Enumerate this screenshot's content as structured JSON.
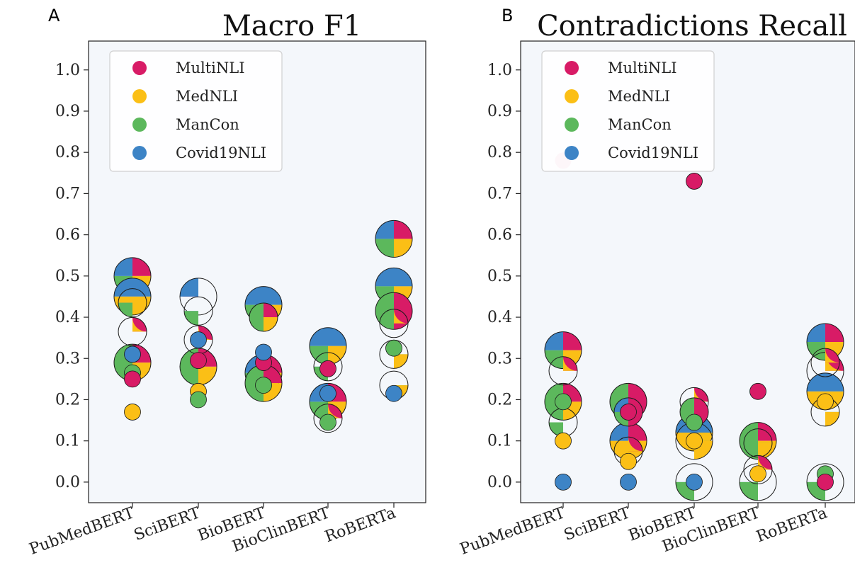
{
  "panels": [
    {
      "letter": "A",
      "title": "Macro F1"
    },
    {
      "letter": "B",
      "title": "Contradictions Recall"
    }
  ],
  "colors": {
    "MultiNLI": "#d81b66",
    "MedNLI": "#fbbf16",
    "ManCon": "#5cb85c",
    "Covid19NLI": "#3d84c6"
  },
  "chart_data": [
    {
      "type": "scatter",
      "title": "Macro F1",
      "categories": [
        "PubMedBERT",
        "SciBERT",
        "BioBERT",
        "BioClinBERT",
        "RoBERTa"
      ],
      "ylim": [
        -0.05,
        1.07
      ],
      "yticks": [
        "0.0",
        "0.1",
        "0.2",
        "0.3",
        "0.4",
        "0.5",
        "0.6",
        "0.7",
        "0.8",
        "0.9",
        "1.0"
      ],
      "legend": [
        "MultiNLI",
        "MedNLI",
        "ManCon",
        "Covid19NLI"
      ],
      "legend_position": "top-left",
      "grid": false,
      "points": [
        {
          "cat": "PubMedBERT",
          "y": 0.5,
          "size": "large",
          "slices": [
            "MultiNLI",
            "MedNLI",
            "ManCon",
            "Covid19NLI"
          ]
        },
        {
          "cat": "PubMedBERT",
          "y": 0.45,
          "size": "large",
          "slices": [
            "MedNLI",
            "Covid19NLI"
          ]
        },
        {
          "cat": "PubMedBERT",
          "y": 0.435,
          "size": "medium",
          "slices": [
            "ManCon",
            "Covid19NLI"
          ]
        },
        {
          "cat": "PubMedBERT",
          "y": 0.365,
          "size": "medium",
          "slices": [
            "MultiNLI",
            "MedNLI"
          ]
        },
        {
          "cat": "PubMedBERT",
          "y": 0.29,
          "size": "large",
          "slices": [
            "MultiNLI",
            "MedNLI",
            "ManCon"
          ]
        },
        {
          "cat": "PubMedBERT",
          "y": 0.31,
          "size": "small",
          "slices": [
            "Covid19NLI"
          ]
        },
        {
          "cat": "PubMedBERT",
          "y": 0.265,
          "size": "small",
          "slices": [
            "ManCon"
          ]
        },
        {
          "cat": "PubMedBERT",
          "y": 0.25,
          "size": "small",
          "slices": [
            "MultiNLI"
          ]
        },
        {
          "cat": "PubMedBERT",
          "y": 0.17,
          "size": "small",
          "slices": [
            "MedNLI"
          ]
        },
        {
          "cat": "SciBERT",
          "y": 0.45,
          "size": "large",
          "slices": [
            "MultiNLI",
            "Covid19NLI"
          ]
        },
        {
          "cat": "SciBERT",
          "y": 0.415,
          "size": "medium",
          "slices": [
            "ManCon",
            "Covid19NLI"
          ]
        },
        {
          "cat": "SciBERT",
          "y": 0.345,
          "size": "medium",
          "slices": [
            "MultiNLI",
            "MedNLI"
          ]
        },
        {
          "cat": "SciBERT",
          "y": 0.345,
          "size": "small",
          "slices": [
            "Covid19NLI"
          ]
        },
        {
          "cat": "SciBERT",
          "y": 0.28,
          "size": "large",
          "slices": [
            "MultiNLI",
            "MedNLI",
            "ManCon"
          ]
        },
        {
          "cat": "SciBERT",
          "y": 0.295,
          "size": "small",
          "slices": [
            "MultiNLI"
          ]
        },
        {
          "cat": "SciBERT",
          "y": 0.22,
          "size": "small",
          "slices": [
            "MedNLI"
          ]
        },
        {
          "cat": "SciBERT",
          "y": 0.2,
          "size": "small",
          "slices": [
            "ManCon"
          ]
        },
        {
          "cat": "BioBERT",
          "y": 0.43,
          "size": "large",
          "slices": [
            "MedNLI",
            "ManCon",
            "Covid19NLI"
          ]
        },
        {
          "cat": "BioBERT",
          "y": 0.4,
          "size": "medium",
          "slices": [
            "MultiNLI",
            "MedNLI",
            "ManCon"
          ]
        },
        {
          "cat": "BioBERT",
          "y": 0.29,
          "size": "small",
          "slices": [
            "MultiNLI"
          ]
        },
        {
          "cat": "BioBERT",
          "y": 0.315,
          "size": "small",
          "slices": [
            "Covid19NLI"
          ]
        },
        {
          "cat": "BioBERT",
          "y": 0.265,
          "size": "large",
          "slices": [
            "MultiNLI",
            "MedNLI",
            "ManCon",
            "Covid19NLI"
          ]
        },
        {
          "cat": "BioBERT",
          "y": 0.24,
          "size": "large",
          "slices": [
            "MultiNLI",
            "MedNLI",
            "ManCon"
          ]
        },
        {
          "cat": "BioBERT",
          "y": 0.235,
          "size": "small",
          "slices": [
            "ManCon"
          ]
        },
        {
          "cat": "BioClinBERT",
          "y": 0.33,
          "size": "large",
          "slices": [
            "MedNLI",
            "ManCon",
            "Covid19NLI"
          ]
        },
        {
          "cat": "BioClinBERT",
          "y": 0.28,
          "size": "medium",
          "slices": [
            "ManCon",
            "Covid19NLI"
          ]
        },
        {
          "cat": "BioClinBERT",
          "y": 0.275,
          "size": "small",
          "slices": [
            "MultiNLI"
          ]
        },
        {
          "cat": "BioClinBERT",
          "y": 0.195,
          "size": "large",
          "slices": [
            "MultiNLI",
            "MedNLI",
            "ManCon",
            "Covid19NLI"
          ]
        },
        {
          "cat": "BioClinBERT",
          "y": 0.215,
          "size": "small",
          "slices": [
            "Covid19NLI"
          ]
        },
        {
          "cat": "BioClinBERT",
          "y": 0.155,
          "size": "medium",
          "slices": [
            "MultiNLI",
            "MedNLI"
          ]
        },
        {
          "cat": "BioClinBERT",
          "y": 0.145,
          "size": "small",
          "slices": [
            "ManCon"
          ]
        },
        {
          "cat": "RoBERTa",
          "y": 0.59,
          "size": "large",
          "slices": [
            "MultiNLI",
            "MedNLI",
            "ManCon",
            "Covid19NLI"
          ]
        },
        {
          "cat": "RoBERTa",
          "y": 0.475,
          "size": "large",
          "slices": [
            "MedNLI",
            "ManCon",
            "Covid19NLI"
          ]
        },
        {
          "cat": "RoBERTa",
          "y": 0.415,
          "size": "large",
          "slices": [
            "MultiNLI",
            "ManCon"
          ]
        },
        {
          "cat": "RoBERTa",
          "y": 0.385,
          "size": "medium",
          "slices": [
            "MultiNLI",
            "MedNLI"
          ]
        },
        {
          "cat": "RoBERTa",
          "y": 0.31,
          "size": "medium",
          "slices": [
            "MedNLI",
            "ManCon"
          ]
        },
        {
          "cat": "RoBERTa",
          "y": 0.325,
          "size": "small",
          "slices": [
            "ManCon"
          ]
        },
        {
          "cat": "RoBERTa",
          "y": 0.235,
          "size": "medium",
          "slices": [
            "MedNLI",
            "ManCon"
          ]
        },
        {
          "cat": "RoBERTa",
          "y": 0.215,
          "size": "small",
          "slices": [
            "Covid19NLI"
          ]
        }
      ]
    },
    {
      "type": "scatter",
      "title": "Contradictions Recall",
      "categories": [
        "PubMedBERT",
        "SciBERT",
        "BioBERT",
        "BioClinBERT",
        "RoBERTa"
      ],
      "ylim": [
        -0.05,
        1.07
      ],
      "yticks": [
        "0.0",
        "0.1",
        "0.2",
        "0.3",
        "0.4",
        "0.5",
        "0.6",
        "0.7",
        "0.8",
        "0.9",
        "1.0"
      ],
      "legend": [
        "MultiNLI",
        "MedNLI",
        "ManCon",
        "Covid19NLI"
      ],
      "legend_position": "top-left",
      "grid": false,
      "points": [
        {
          "cat": "PubMedBERT",
          "y": 0.78,
          "size": "small",
          "slices": [
            "MultiNLI"
          ],
          "faded": true
        },
        {
          "cat": "PubMedBERT",
          "y": 0.32,
          "size": "large",
          "slices": [
            "MultiNLI",
            "MedNLI",
            "ManCon",
            "Covid19NLI"
          ]
        },
        {
          "cat": "PubMedBERT",
          "y": 0.27,
          "size": "medium",
          "slices": [
            "MultiNLI",
            "MedNLI"
          ]
        },
        {
          "cat": "PubMedBERT",
          "y": 0.195,
          "size": "large",
          "slices": [
            "MultiNLI",
            "MedNLI",
            "ManCon"
          ]
        },
        {
          "cat": "PubMedBERT",
          "y": 0.195,
          "size": "small",
          "slices": [
            "ManCon"
          ]
        },
        {
          "cat": "PubMedBERT",
          "y": 0.145,
          "size": "medium",
          "slices": [
            "ManCon",
            "Covid19NLI"
          ]
        },
        {
          "cat": "PubMedBERT",
          "y": 0.1,
          "size": "small",
          "slices": [
            "MedNLI"
          ]
        },
        {
          "cat": "PubMedBERT",
          "y": 0.0,
          "size": "small",
          "slices": [
            "Covid19NLI"
          ]
        },
        {
          "cat": "SciBERT",
          "y": 0.195,
          "size": "large",
          "slices": [
            "MultiNLI",
            "ManCon"
          ]
        },
        {
          "cat": "SciBERT",
          "y": 0.17,
          "size": "medium",
          "slices": [
            "MultiNLI",
            "ManCon",
            "Covid19NLI"
          ]
        },
        {
          "cat": "SciBERT",
          "y": 0.17,
          "size": "small",
          "slices": [
            "MultiNLI"
          ]
        },
        {
          "cat": "SciBERT",
          "y": 0.1,
          "size": "large",
          "slices": [
            "MultiNLI",
            "MedNLI",
            "Covid19NLI"
          ]
        },
        {
          "cat": "SciBERT",
          "y": 0.075,
          "size": "medium",
          "slices": [
            "MultiNLI",
            "MedNLI"
          ]
        },
        {
          "cat": "SciBERT",
          "y": 0.05,
          "size": "small",
          "slices": [
            "MedNLI"
          ]
        },
        {
          "cat": "SciBERT",
          "y": 0.0,
          "size": "small",
          "slices": [
            "Covid19NLI"
          ]
        },
        {
          "cat": "BioBERT",
          "y": 0.73,
          "size": "small",
          "slices": [
            "MultiNLI"
          ]
        },
        {
          "cat": "BioBERT",
          "y": 0.195,
          "size": "medium",
          "slices": [
            "MultiNLI",
            "MedNLI"
          ]
        },
        {
          "cat": "BioBERT",
          "y": 0.17,
          "size": "medium",
          "slices": [
            "MultiNLI",
            "ManCon"
          ]
        },
        {
          "cat": "BioBERT",
          "y": 0.145,
          "size": "small",
          "slices": [
            "ManCon"
          ]
        },
        {
          "cat": "BioBERT",
          "y": 0.12,
          "size": "large",
          "slices": [
            "MedNLI",
            "Covid19NLI"
          ]
        },
        {
          "cat": "BioBERT",
          "y": 0.1,
          "size": "large",
          "slices": [
            "MedNLI",
            "ManCon"
          ]
        },
        {
          "cat": "BioBERT",
          "y": 0.1,
          "size": "small",
          "slices": [
            "MedNLI"
          ]
        },
        {
          "cat": "BioBERT",
          "y": 0.0,
          "size": "large",
          "slices": [
            "ManCon",
            "Covid19NLI"
          ]
        },
        {
          "cat": "BioBERT",
          "y": 0.0,
          "size": "small",
          "slices": [
            "Covid19NLI"
          ]
        },
        {
          "cat": "BioClinBERT",
          "y": 0.22,
          "size": "small",
          "slices": [
            "MultiNLI"
          ]
        },
        {
          "cat": "BioClinBERT",
          "y": 0.1,
          "size": "large",
          "slices": [
            "MultiNLI",
            "MedNLI",
            "ManCon"
          ]
        },
        {
          "cat": "BioClinBERT",
          "y": 0.095,
          "size": "medium",
          "slices": [
            "MedNLI",
            "ManCon"
          ]
        },
        {
          "cat": "BioClinBERT",
          "y": 0.03,
          "size": "medium",
          "slices": [
            "MultiNLI",
            "MedNLI"
          ]
        },
        {
          "cat": "BioClinBERT",
          "y": 0.02,
          "size": "small",
          "slices": [
            "MedNLI"
          ]
        },
        {
          "cat": "BioClinBERT",
          "y": 0.0,
          "size": "large",
          "slices": [
            "ManCon",
            "Covid19NLI"
          ]
        },
        {
          "cat": "RoBERTa",
          "y": 0.34,
          "size": "large",
          "slices": [
            "MultiNLI",
            "MedNLI",
            "ManCon",
            "Covid19NLI"
          ]
        },
        {
          "cat": "RoBERTa",
          "y": 0.29,
          "size": "medium",
          "slices": [
            "MultiNLI",
            "MedNLI"
          ]
        },
        {
          "cat": "RoBERTa",
          "y": 0.27,
          "size": "large",
          "slices": [
            "MultiNLI",
            "MedNLI"
          ]
        },
        {
          "cat": "RoBERTa",
          "y": 0.22,
          "size": "large",
          "slices": [
            "MedNLI",
            "Covid19NLI"
          ]
        },
        {
          "cat": "RoBERTa",
          "y": 0.195,
          "size": "small",
          "slices": [
            "MedNLI"
          ]
        },
        {
          "cat": "RoBERTa",
          "y": 0.17,
          "size": "medium",
          "slices": [
            "MedNLI",
            "ManCon"
          ]
        },
        {
          "cat": "RoBERTa",
          "y": 0.02,
          "size": "small",
          "slices": [
            "ManCon"
          ]
        },
        {
          "cat": "RoBERTa",
          "y": 0.0,
          "size": "large",
          "slices": [
            "ManCon",
            "Covid19NLI"
          ]
        },
        {
          "cat": "RoBERTa",
          "y": 0.0,
          "size": "small",
          "slices": [
            "MultiNLI"
          ]
        }
      ]
    }
  ]
}
